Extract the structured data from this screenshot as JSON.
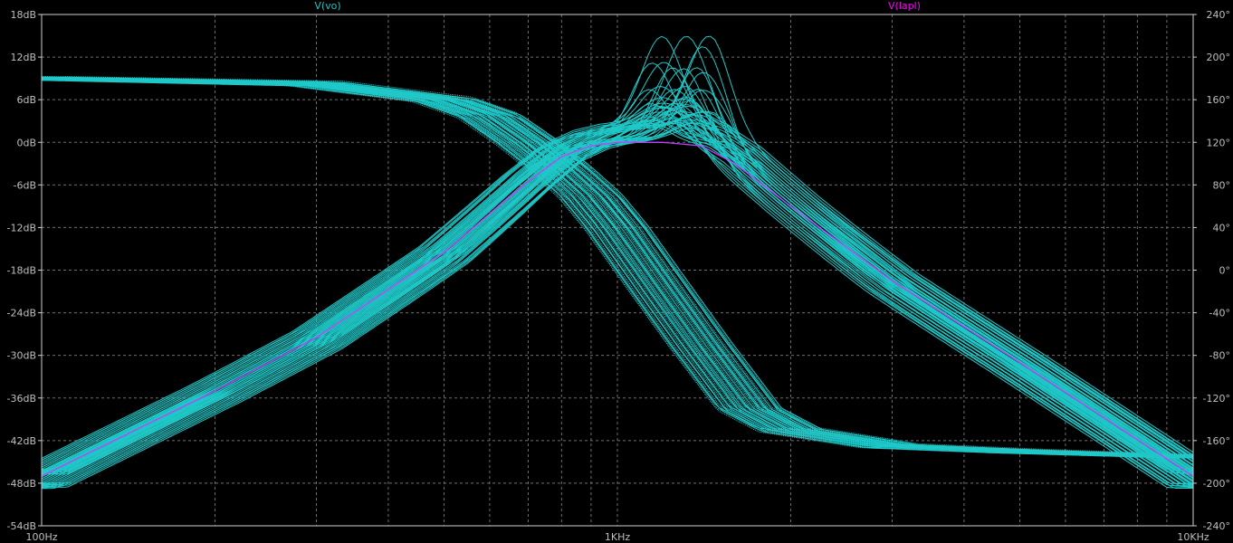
{
  "window": {
    "background": "#000000"
  },
  "legend": [
    {
      "label": "V(vo)",
      "color": "#22c3c3"
    },
    {
      "label": "V(lapl)",
      "color": "#ff00ff"
    }
  ],
  "colors": {
    "grid": "#6f6f6f",
    "frame": "#cfcfcf",
    "ticks": "#bfbfbf",
    "traces": "#20c8c8",
    "nominal": "#c040ff"
  },
  "chart_data": {
    "type": "line",
    "title": "",
    "xscale": "log",
    "xlim": [
      100,
      10000
    ],
    "xticks": [
      {
        "value": 100,
        "label": "100Hz"
      },
      {
        "value": 1000,
        "label": "1KHz"
      },
      {
        "value": 10000,
        "label": "10KHz"
      }
    ],
    "y_left": {
      "unit": "dB",
      "ylim": [
        -54,
        18
      ],
      "ticks": [
        {
          "value": 18,
          "label": "18dB"
        },
        {
          "value": 12,
          "label": "12dB"
        },
        {
          "value": 6,
          "label": "6dB"
        },
        {
          "value": 0,
          "label": "0dB"
        },
        {
          "value": -6,
          "label": "-6dB"
        },
        {
          "value": -12,
          "label": "-12dB"
        },
        {
          "value": -18,
          "label": "-18dB"
        },
        {
          "value": -24,
          "label": "-24dB"
        },
        {
          "value": -30,
          "label": "-30dB"
        },
        {
          "value": -36,
          "label": "-36dB"
        },
        {
          "value": -42,
          "label": "-42dB"
        },
        {
          "value": -48,
          "label": "-48dB"
        },
        {
          "value": -54,
          "label": "-54dB"
        }
      ]
    },
    "y_right": {
      "unit": "degrees",
      "ylim": [
        -240,
        240
      ],
      "ticks": [
        {
          "value": 240,
          "label": "240°"
        },
        {
          "value": 200,
          "label": "200°"
        },
        {
          "value": 160,
          "label": "160°"
        },
        {
          "value": 120,
          "label": "120°"
        },
        {
          "value": 80,
          "label": "80°"
        },
        {
          "value": 40,
          "label": "40°"
        },
        {
          "value": 0,
          "label": "0°"
        },
        {
          "value": -40,
          "label": "-40°"
        },
        {
          "value": -80,
          "label": "-80°"
        },
        {
          "value": -120,
          "label": "-120°"
        },
        {
          "value": -160,
          "label": "-160°"
        },
        {
          "value": -200,
          "label": "-200°"
        },
        {
          "value": -240,
          "label": "-240°"
        }
      ]
    },
    "grid": true,
    "series": [
      {
        "name": "V(lapl)",
        "kind": "magnitude",
        "axis": "left",
        "x": [
          100,
          200,
          300,
          500,
          700,
          800,
          900,
          1000,
          1200,
          1400,
          1600,
          2000,
          3000,
          5000,
          10000
        ],
        "values": [
          -47,
          -35,
          -27.5,
          -15.5,
          -5.5,
          -2,
          -0.5,
          0,
          0,
          -0.5,
          -3,
          -9,
          -19.5,
          -31,
          -47
        ]
      },
      {
        "name": "V(lapl)",
        "kind": "phase",
        "axis": "right",
        "x": [
          100,
          300,
          500,
          600,
          700,
          800,
          900,
          1000,
          1200,
          1400,
          1700,
          2000,
          3000,
          5000,
          10000
        ],
        "values": [
          180,
          175,
          160,
          145,
          120,
          95,
          70,
          40,
          -20,
          -70,
          -130,
          -150,
          -165,
          -170,
          -175
        ]
      },
      {
        "name": "V(vo)",
        "kind": "magnitude",
        "runs": 50,
        "axis": "left",
        "x": [
          100,
          200,
          300,
          500,
          700,
          800,
          900,
          1000,
          1200,
          1300,
          1400,
          1600,
          2000,
          3000,
          5000,
          10000
        ],
        "values": [
          -47,
          -35,
          -27.5,
          -15.5,
          -5,
          -1.5,
          0,
          0.5,
          2,
          3,
          1,
          -3,
          -9,
          -19.5,
          -31,
          -47
        ],
        "max_peak": {
          "x": 1300,
          "y": 12.5
        }
      }
    ]
  }
}
